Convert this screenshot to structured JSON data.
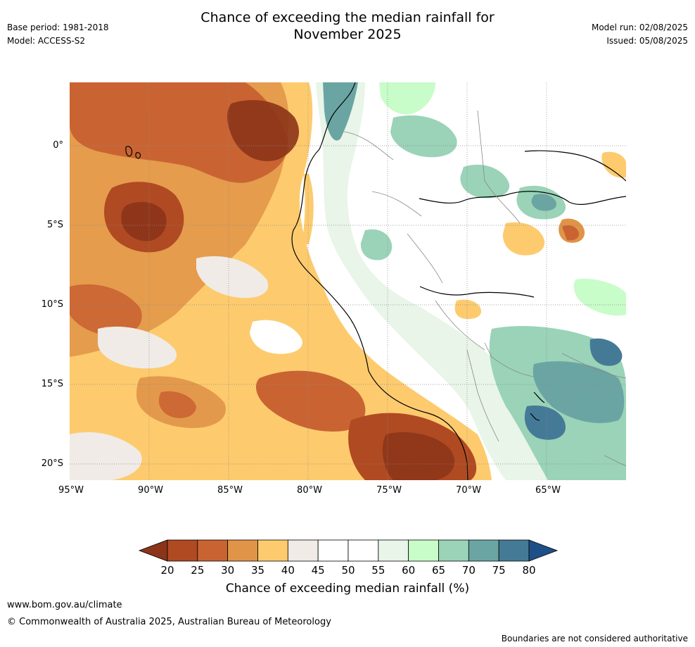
{
  "header": {
    "title_line1": "Chance of exceeding the median rainfall for",
    "title_line2": "November 2025",
    "base_period": "Base period: 1981-2018",
    "model": "Model: ACCESS-S2",
    "model_run": "Model run: 02/08/2025",
    "issued": "Issued: 05/08/2025"
  },
  "map": {
    "lat_labels": [
      "0°",
      "5°S",
      "10°S",
      "15°S",
      "20°S"
    ],
    "lon_labels": [
      "95°W",
      "90°W",
      "85°W",
      "80°W",
      "75°W",
      "70°W",
      "65°W"
    ]
  },
  "colorbar": {
    "ticks": [
      "20",
      "25",
      "30",
      "35",
      "40",
      "45",
      "50",
      "55",
      "60",
      "65",
      "70",
      "75",
      "80"
    ],
    "colors": [
      "#8c3419",
      "#b04a22",
      "#c96432",
      "#e09448",
      "#fdcb6e",
      "#f0ebe6",
      "#ffffff",
      "#ffffff",
      "#e8f5e8",
      "#c8fcc8",
      "#9ad3b8",
      "#6ba5a3",
      "#457a97",
      "#1f4f87"
    ],
    "label": "Chance of exceeding median rainfall (%)"
  },
  "footer": {
    "url": "www.bom.gov.au/climate",
    "copyright": "© Commonwealth of Australia 2025, Australian Bureau of Meteorology",
    "disclaimer": "Boundaries are not considered authoritative"
  }
}
